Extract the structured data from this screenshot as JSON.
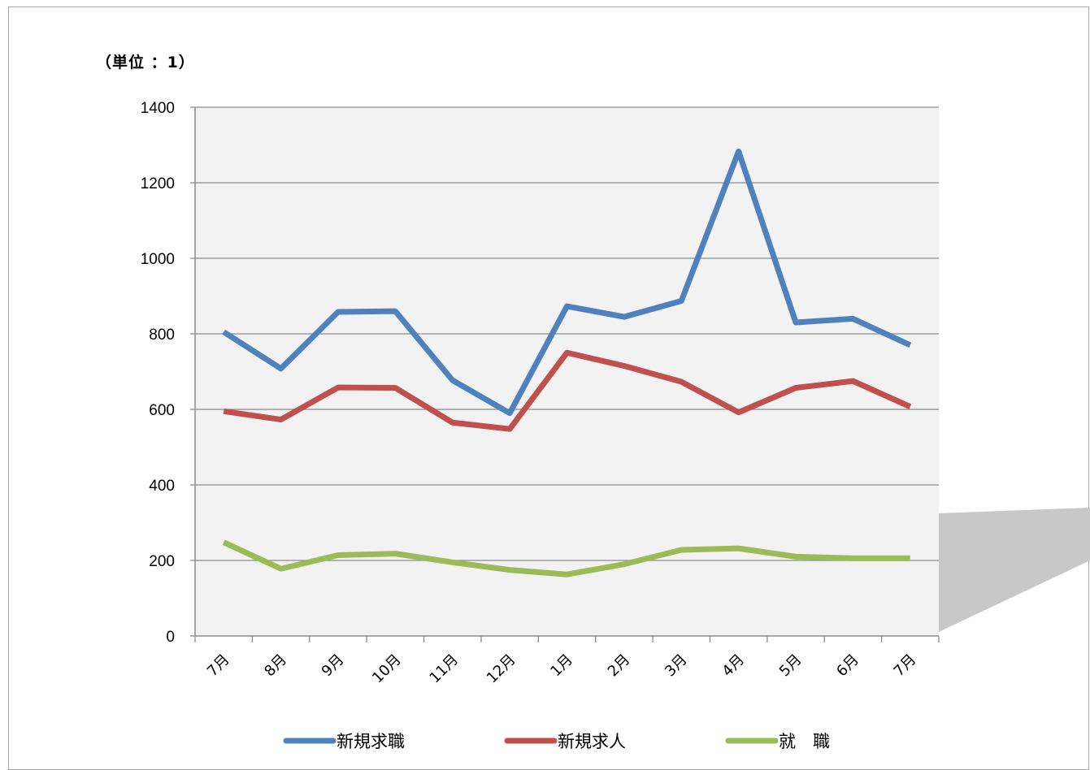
{
  "unit_label": "（単位 ：1）",
  "colors": {
    "plot_bg": "#f2f2f2",
    "grid": "#8c8c8c",
    "axis": "#8c8c8c",
    "shadow": "#bfbfbf"
  },
  "chart_data": {
    "type": "line",
    "title": "",
    "xlabel": "",
    "ylabel": "",
    "ylim": [
      0,
      1400
    ],
    "yticks": [
      "0",
      "200",
      "400",
      "600",
      "800",
      "1000",
      "1200",
      "1400"
    ],
    "grid": true,
    "legend_position": "bottom",
    "categories": [
      "7月",
      "8月",
      "9月",
      "10月",
      "11月",
      "12月",
      "1月",
      "2月",
      "3月",
      "4月",
      "5月",
      "6月",
      "7月"
    ],
    "series": [
      {
        "name": "新規求職",
        "color": "#4f81bd",
        "values": [
          805,
          708,
          858,
          860,
          677,
          590,
          873,
          845,
          887,
          1283,
          830,
          840,
          770
        ]
      },
      {
        "name": "新規求人",
        "color": "#c0504d",
        "values": [
          595,
          573,
          658,
          657,
          565,
          548,
          750,
          715,
          673,
          592,
          657,
          675,
          607
        ]
      },
      {
        "name": "就　職",
        "color": "#9bbb59",
        "values": [
          248,
          178,
          214,
          218,
          195,
          175,
          163,
          190,
          228,
          232,
          210,
          206,
          206
        ]
      }
    ]
  }
}
